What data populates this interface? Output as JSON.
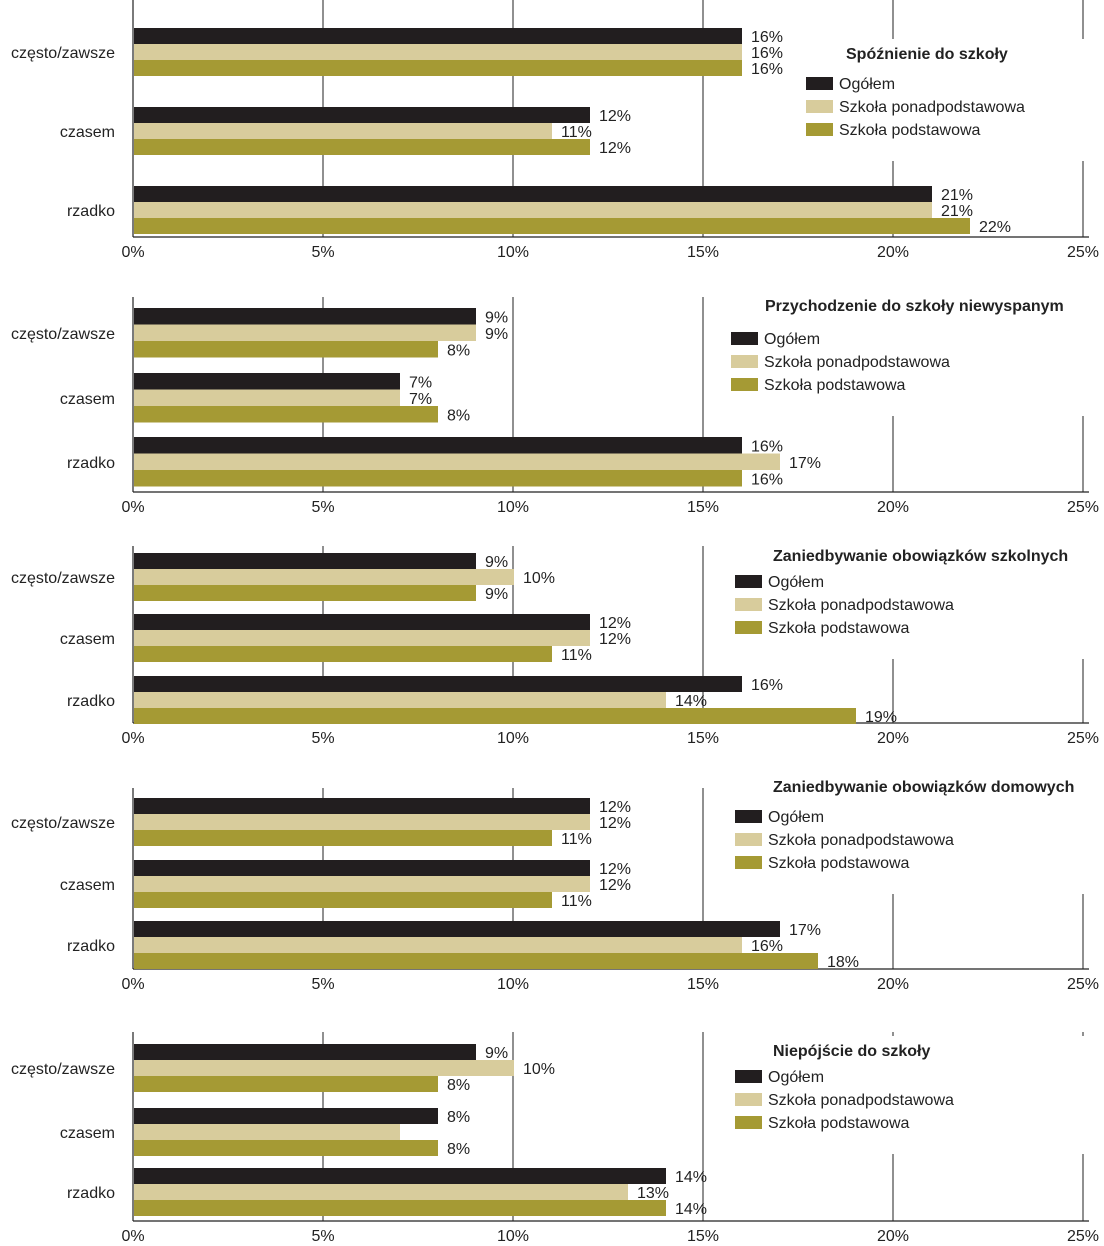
{
  "chart_data": [
    {
      "type": "bar",
      "orientation": "horizontal",
      "title": "Spóźnienie do szkoły",
      "categories": [
        "często/zawsze",
        "czasem",
        "rzadko"
      ],
      "series": [
        {
          "name": "Ogółem",
          "values": [
            16,
            12,
            21
          ],
          "labels": [
            "16%",
            "12%",
            "21%"
          ]
        },
        {
          "name": "Szkoła ponadpodstawowa",
          "values": [
            16,
            11,
            21
          ],
          "labels": [
            "16%",
            "11%",
            "21%"
          ]
        },
        {
          "name": "Szkoła podstawowa",
          "values": [
            16,
            12,
            22
          ],
          "labels": [
            "16%",
            "12%",
            "22%"
          ]
        }
      ],
      "xlim": [
        0,
        25
      ],
      "ticks": [
        "0%",
        "5%",
        "10%",
        "15%",
        "20%",
        "25%"
      ],
      "legend": "right"
    },
    {
      "type": "bar",
      "orientation": "horizontal",
      "title": "Przychodzenie do szkoły niewyspanym",
      "categories": [
        "często/zawsze",
        "czasem",
        "rzadko"
      ],
      "series": [
        {
          "name": "Ogółem",
          "values": [
            9,
            7,
            16
          ],
          "labels": [
            "9%",
            "7%",
            "16%"
          ]
        },
        {
          "name": "Szkoła ponadpodstawowa",
          "values": [
            9,
            7,
            17
          ],
          "labels": [
            "9%",
            "7%",
            "17%"
          ]
        },
        {
          "name": "Szkoła podstawowa",
          "values": [
            8,
            8,
            16
          ],
          "labels": [
            "8%",
            "8%",
            "16%"
          ]
        }
      ],
      "xlim": [
        0,
        25
      ],
      "ticks": [
        "0%",
        "5%",
        "10%",
        "15%",
        "20%",
        "25%"
      ],
      "legend": "right"
    },
    {
      "type": "bar",
      "orientation": "horizontal",
      "title": "Zaniedbywanie obowiązków szkolnych",
      "categories": [
        "często/zawsze",
        "czasem",
        "rzadko"
      ],
      "series": [
        {
          "name": "Ogółem",
          "values": [
            9,
            12,
            16
          ],
          "labels": [
            "9%",
            "12%",
            "16%"
          ]
        },
        {
          "name": "Szkoła ponadpodstawowa",
          "values": [
            10,
            12,
            14
          ],
          "labels": [
            "10%",
            "12%",
            "14%"
          ]
        },
        {
          "name": "Szkoła podstawowa",
          "values": [
            9,
            11,
            19
          ],
          "labels": [
            "9%",
            "11%",
            "19%"
          ]
        }
      ],
      "xlim": [
        0,
        25
      ],
      "ticks": [
        "0%",
        "5%",
        "10%",
        "15%",
        "20%",
        "25%"
      ],
      "legend": "right"
    },
    {
      "type": "bar",
      "orientation": "horizontal",
      "title": "Zaniedbywanie obowiązków domowych",
      "categories": [
        "często/zawsze",
        "czasem",
        "rzadko"
      ],
      "series": [
        {
          "name": "Ogółem",
          "values": [
            12,
            12,
            17
          ],
          "labels": [
            "12%",
            "12%",
            "17%"
          ]
        },
        {
          "name": "Szkoła ponadpodstawowa",
          "values": [
            12,
            12,
            16
          ],
          "labels": [
            "12%",
            "12%",
            "16%"
          ]
        },
        {
          "name": "Szkoła podstawowa",
          "values": [
            11,
            11,
            18
          ],
          "labels": [
            "11%",
            "11%",
            "18%"
          ]
        }
      ],
      "xlim": [
        0,
        25
      ],
      "ticks": [
        "0%",
        "5%",
        "10%",
        "15%",
        "20%",
        "25%"
      ],
      "legend": "right"
    },
    {
      "type": "bar",
      "orientation": "horizontal",
      "title": "Niepójście do szkoły",
      "categories": [
        "często/zawsze",
        "czasem",
        "rzadko"
      ],
      "series": [
        {
          "name": "Ogółem",
          "values": [
            9,
            8,
            14
          ],
          "labels": [
            "9%",
            "8%",
            "14%"
          ]
        },
        {
          "name": "Szkoła ponadpodstawowa",
          "values": [
            10,
            7,
            13
          ],
          "labels": [
            "10%",
            "",
            "13%"
          ]
        },
        {
          "name": "Szkoła podstawowa",
          "values": [
            8,
            8,
            14
          ],
          "labels": [
            "8%",
            "8%",
            "14%"
          ]
        }
      ],
      "xlim": [
        0,
        25
      ],
      "ticks": [
        "0%",
        "5%",
        "10%",
        "15%",
        "20%",
        "25%"
      ],
      "legend": "right"
    }
  ],
  "colors": {
    "Ogółem": "#221e1f",
    "Szkoła ponadpodstawowa": "#d8cc9c",
    "Szkoła podstawowa": "#a59a34"
  }
}
